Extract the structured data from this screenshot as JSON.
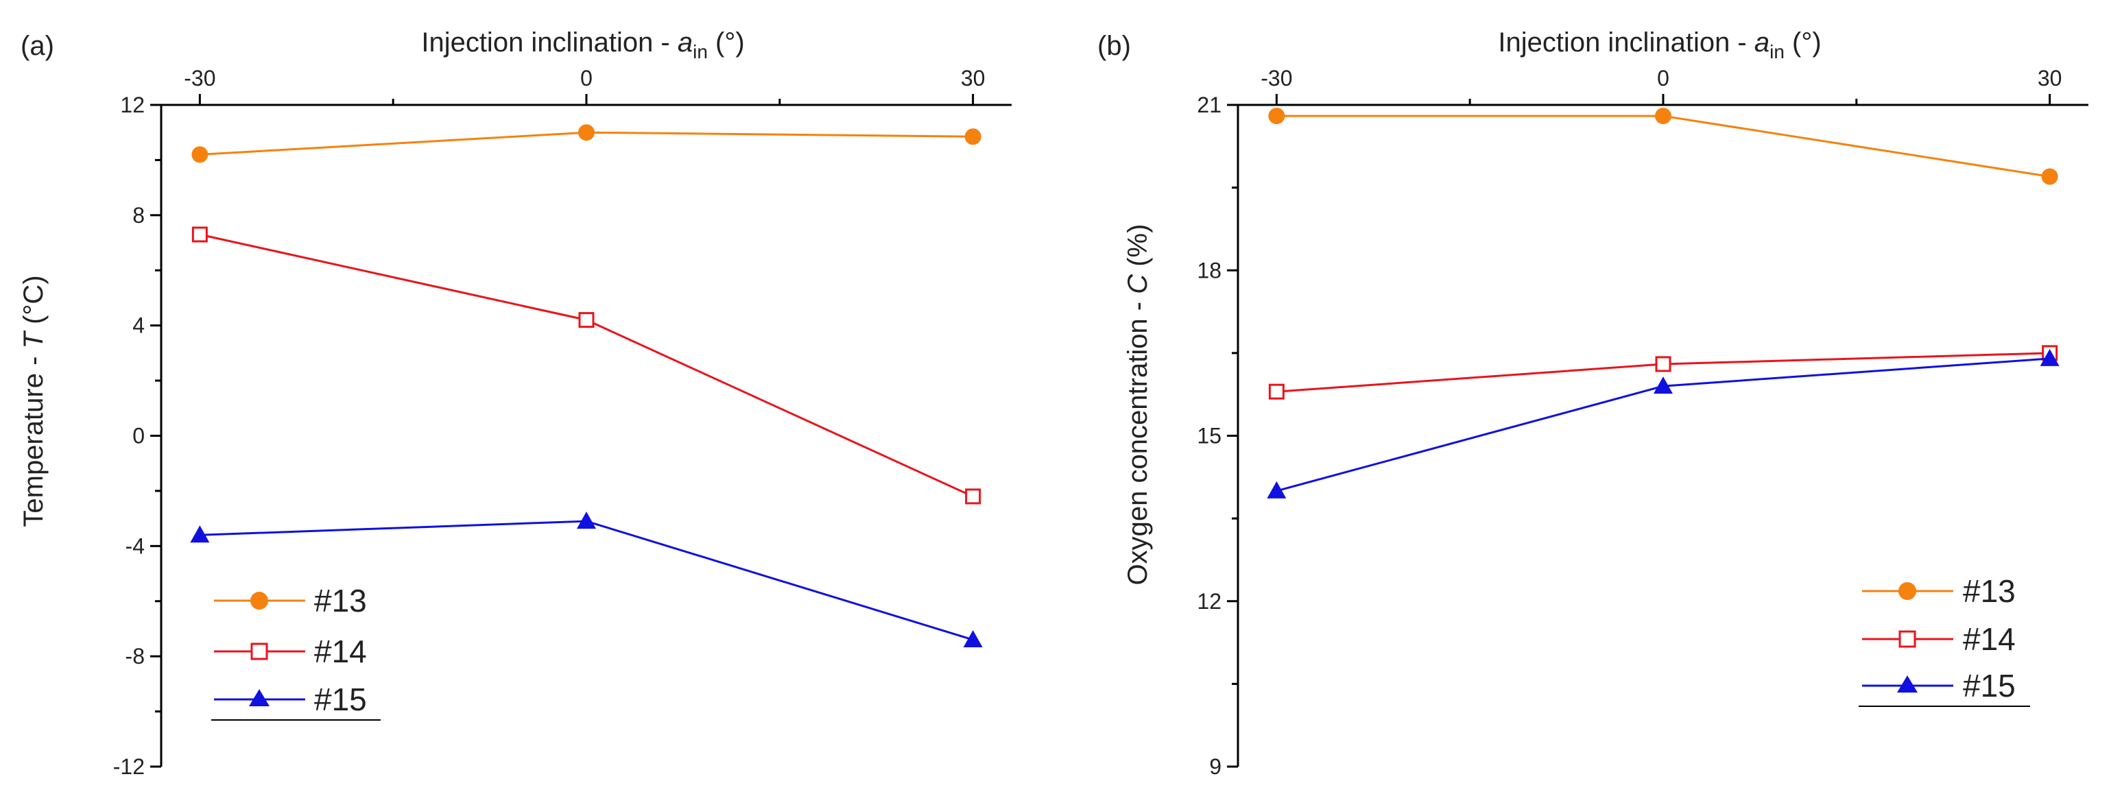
{
  "chart_data": [
    {
      "type": "line",
      "panel_label": "(a)",
      "title": "",
      "xlabel": "Injection inclination - ",
      "xlabel_symbol": "a",
      "xlabel_subscript": "in",
      "xlabel_unit": " (°)",
      "ylabel": "Temperature - ",
      "ylabel_symbol": "T",
      "ylabel_unit": " (°C)",
      "x": [
        -30,
        0,
        30
      ],
      "x_ticks": [
        "-30",
        "0",
        "30"
      ],
      "xlim": [
        -33,
        33
      ],
      "ylim": [
        -12,
        12
      ],
      "y_ticks": [
        "12",
        "8",
        "4",
        "0",
        "-4",
        "-8",
        "-12"
      ],
      "legend_position": "bottom-left",
      "series": [
        {
          "name": "#13",
          "values": [
            10.2,
            11.0,
            10.85
          ],
          "color": "#F5820F",
          "marker": "circle"
        },
        {
          "name": "#14",
          "values": [
            7.3,
            4.2,
            -2.2
          ],
          "color": "#E8141C",
          "marker": "open-square"
        },
        {
          "name": "#15",
          "values": [
            -3.6,
            -3.1,
            -7.4
          ],
          "color": "#1010E0",
          "marker": "triangle"
        }
      ]
    },
    {
      "type": "line",
      "panel_label": "(b)",
      "title": "",
      "xlabel": "Injection inclination - ",
      "xlabel_symbol": "a",
      "xlabel_subscript": "in",
      "xlabel_unit": " (°)",
      "ylabel": "Oxygen concentration - ",
      "ylabel_symbol": "C",
      "ylabel_unit": " (%)",
      "x": [
        -30,
        0,
        30
      ],
      "x_ticks": [
        "-30",
        "0",
        "30"
      ],
      "xlim": [
        -33,
        33
      ],
      "ylim": [
        9,
        21
      ],
      "y_ticks": [
        "21",
        "18",
        "15",
        "12",
        "9"
      ],
      "legend_position": "bottom-right",
      "series": [
        {
          "name": "#13",
          "values": [
            20.8,
            20.8,
            19.7
          ],
          "color": "#F5820F",
          "marker": "circle"
        },
        {
          "name": "#14",
          "values": [
            15.8,
            16.3,
            16.5
          ],
          "color": "#E8141C",
          "marker": "open-square"
        },
        {
          "name": "#15",
          "values": [
            14.0,
            15.9,
            16.4
          ],
          "color": "#1010E0",
          "marker": "triangle"
        }
      ]
    }
  ]
}
